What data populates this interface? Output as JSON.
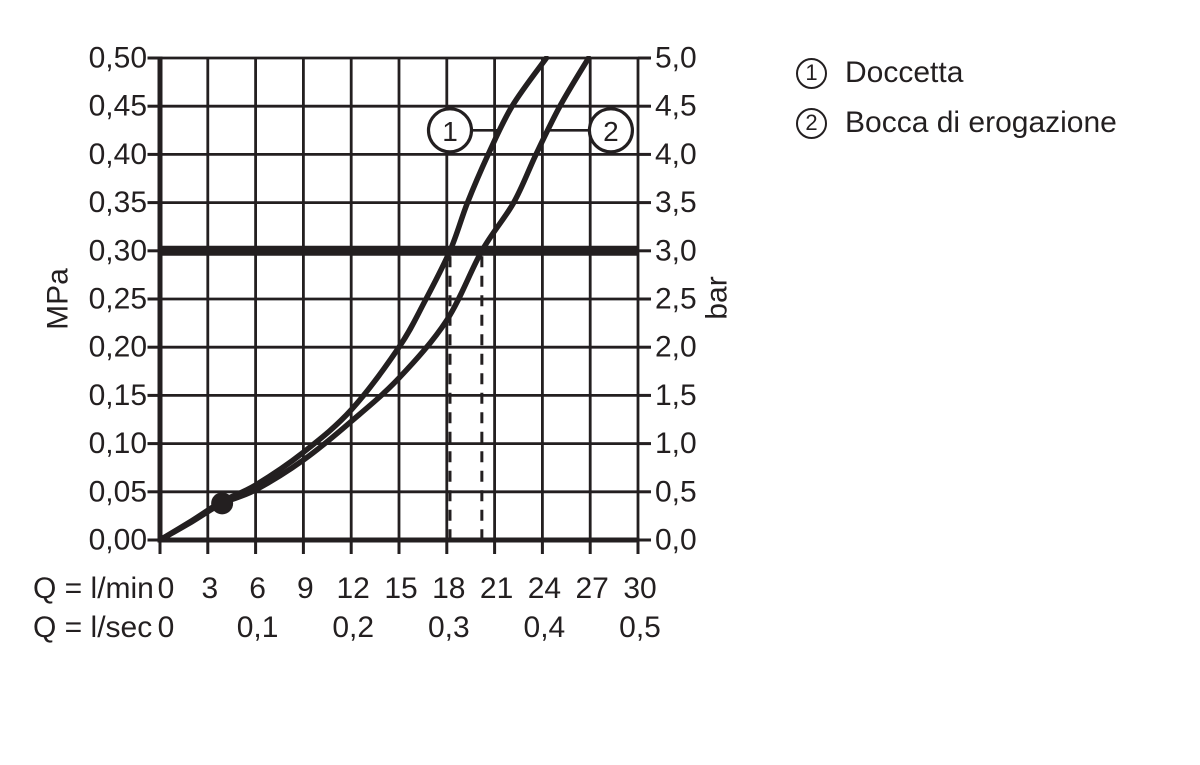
{
  "colors": {
    "ink": "#231f20",
    "background": "#ffffff"
  },
  "legend": {
    "items": [
      {
        "symbol": "1",
        "label": "Doccetta"
      },
      {
        "symbol": "2",
        "label": "Bocca di erogazione"
      }
    ]
  },
  "chart_data": {
    "type": "line",
    "x_axis": {
      "row1_label": "Q = l/min",
      "row1_ticks": [
        "0",
        "3",
        "6",
        "9",
        "12",
        "15",
        "18",
        "21",
        "24",
        "27",
        "30"
      ],
      "row1_values_lmin": [
        0,
        3,
        6,
        9,
        12,
        15,
        18,
        21,
        24,
        27,
        30
      ],
      "row2_label": "Q = l/sec",
      "row2_ticks": [
        {
          "text": "0",
          "at_lmin": 0
        },
        {
          "text": "0,1",
          "at_lmin": 6
        },
        {
          "text": "0,2",
          "at_lmin": 12
        },
        {
          "text": "0,3",
          "at_lmin": 18
        },
        {
          "text": "0,4",
          "at_lmin": 24
        },
        {
          "text": "0,5",
          "at_lmin": 30
        }
      ],
      "range_lmin": [
        0,
        30
      ],
      "grid_step_lmin": 3
    },
    "y_axis_left": {
      "unit": "MPa",
      "ticks": [
        "0,00",
        "0,05",
        "0,10",
        "0,15",
        "0,20",
        "0,25",
        "0,30",
        "0,35",
        "0,40",
        "0,45",
        "0,50"
      ],
      "tick_values_mpa": [
        0,
        0.05,
        0.1,
        0.15,
        0.2,
        0.25,
        0.3,
        0.35,
        0.4,
        0.45,
        0.5
      ],
      "range_mpa": [
        0,
        0.5
      ],
      "grid_step_mpa": 0.05
    },
    "y_axis_right": {
      "unit": "bar",
      "ticks": [
        "0,0",
        "0,5",
        "1,0",
        "1,5",
        "2,0",
        "2,5",
        "3,0",
        "3,5",
        "4,0",
        "4,5",
        "5,0"
      ],
      "range_bar": [
        0,
        5
      ]
    },
    "grid": true,
    "series": [
      {
        "id": "1",
        "name": "Doccetta",
        "points_lmin_mpa": [
          [
            0,
            0
          ],
          [
            2,
            0.02
          ],
          [
            3.9,
            0.04
          ],
          [
            6,
            0.057
          ],
          [
            9,
            0.091
          ],
          [
            12,
            0.135
          ],
          [
            15,
            0.2
          ],
          [
            16.6,
            0.247
          ],
          [
            18.2,
            0.3
          ],
          [
            19.3,
            0.35
          ],
          [
            20.6,
            0.4
          ],
          [
            22.1,
            0.45
          ],
          [
            24.25,
            0.5
          ]
        ]
      },
      {
        "id": "2",
        "name": "Bocca di erogazione",
        "points_lmin_mpa": [
          [
            0,
            0
          ],
          [
            2,
            0.019
          ],
          [
            3.9,
            0.038
          ],
          [
            6,
            0.052
          ],
          [
            9,
            0.083
          ],
          [
            12,
            0.123
          ],
          [
            15,
            0.168
          ],
          [
            18,
            0.228
          ],
          [
            20.2,
            0.3
          ],
          [
            22.2,
            0.35
          ],
          [
            23.6,
            0.4
          ],
          [
            25.1,
            0.45
          ],
          [
            26.9,
            0.5
          ]
        ]
      }
    ],
    "reference_line_mpa": 0.3,
    "dashed_guides_lmin": [
      18.2,
      20.2
    ],
    "operating_point": {
      "lmin": 3.9,
      "mpa": 0.038
    },
    "series_markers": [
      {
        "label": "1",
        "series_index": 0,
        "center_lmin": 18.2,
        "center_mpa": 0.425,
        "connector_side": "right"
      },
      {
        "label": "2",
        "series_index": 1,
        "center_lmin": 28.3,
        "center_mpa": 0.425,
        "connector_side": "left"
      }
    ]
  }
}
